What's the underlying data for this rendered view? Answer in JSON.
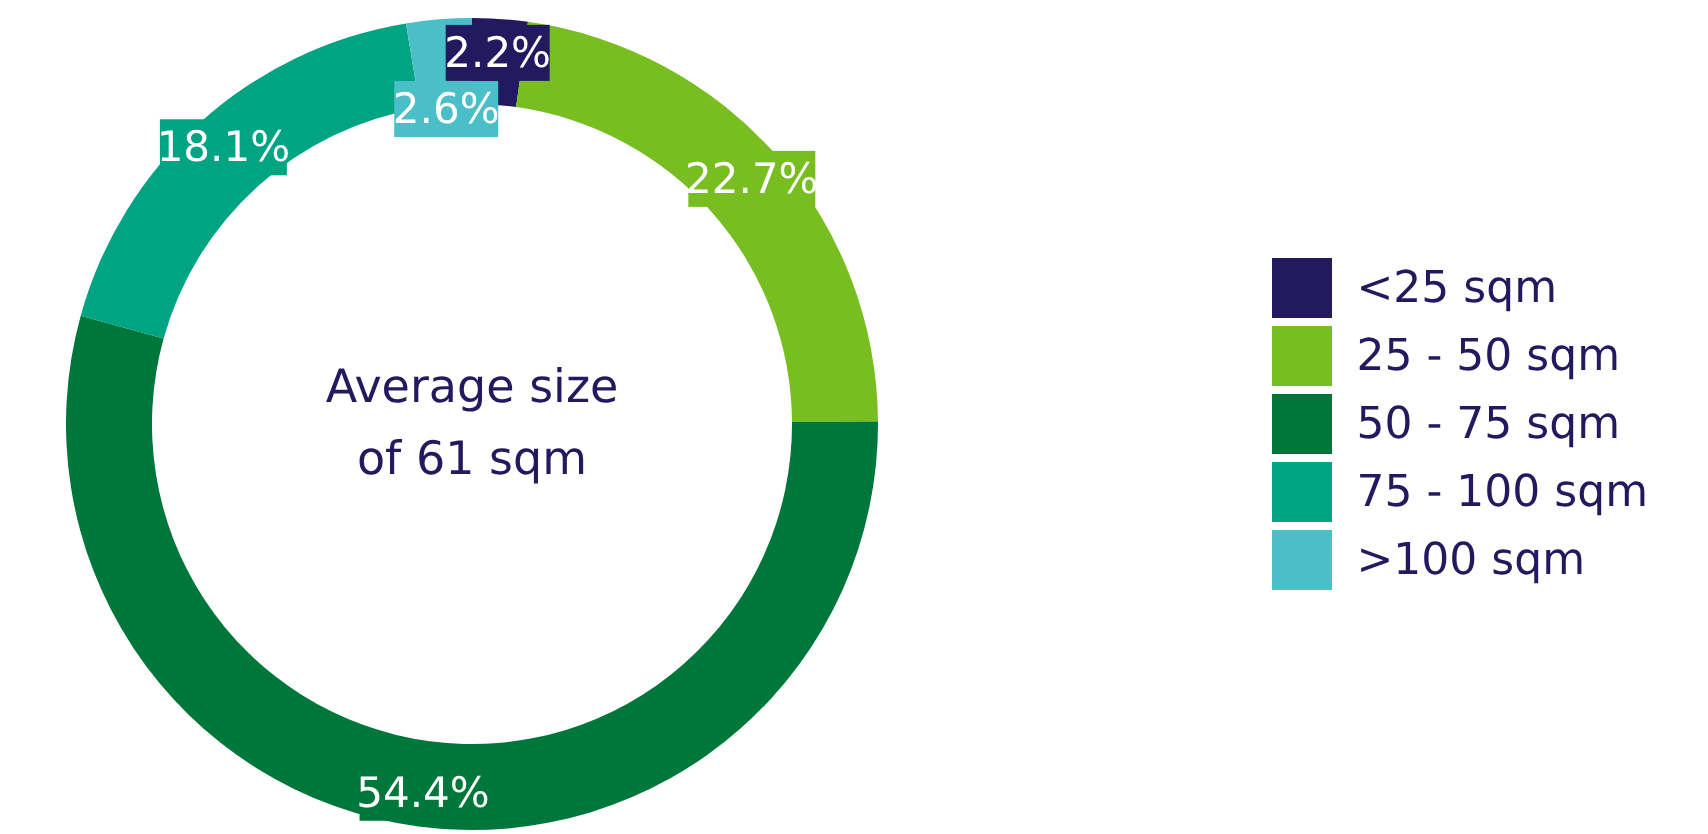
{
  "chart_data": {
    "type": "donut",
    "categories": [
      "<25 sqm",
      "25 - 50 sqm",
      "50 - 75 sqm",
      "75 - 100 sqm",
      ">100 sqm"
    ],
    "values": [
      2.2,
      22.7,
      54.4,
      18.1,
      2.6
    ],
    "value_labels": [
      "2.2%",
      "22.7%",
      "54.4%",
      "18.1%",
      "2.6%"
    ],
    "colors": [
      "#22195e",
      "#78be20",
      "#00773a",
      "#00a382",
      "#4bbfc8"
    ],
    "annotations": [
      "Average size of 61 sqm"
    ],
    "legend": "right"
  }
}
